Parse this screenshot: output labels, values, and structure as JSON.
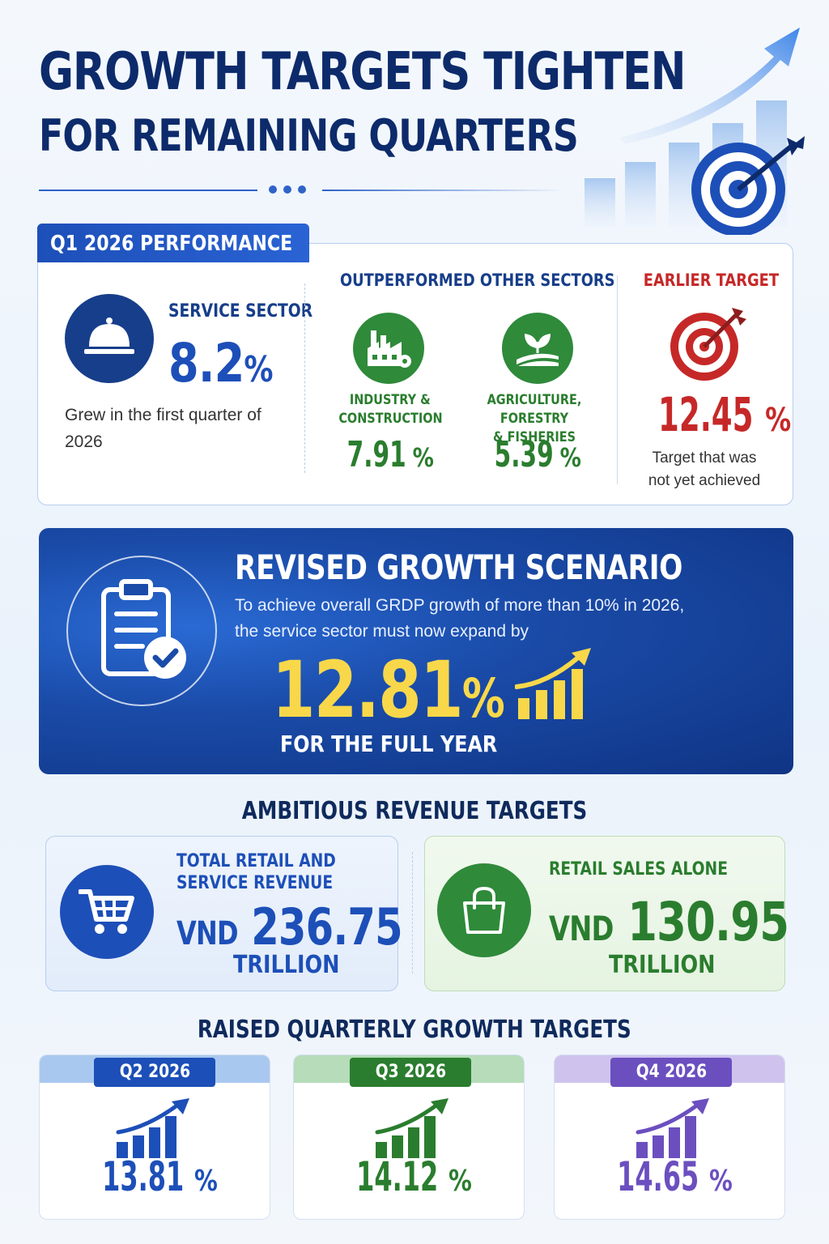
{
  "header": {
    "title_line1": "GROWTH TARGETS TIGHTEN",
    "title_line2": "FOR REMAINING QUARTERS"
  },
  "q1": {
    "tab_label": "Q1 2026 PERFORMANCE",
    "service": {
      "label": "SERVICE SECTOR",
      "value": "8.2",
      "unit": "%",
      "description": "Grew in the first quarter of 2026",
      "icon": "service-bell-icon"
    },
    "outperformed_label": "OUTPERFORMED OTHER SECTORS",
    "sectors": [
      {
        "name_line1": "INDUSTRY &",
        "name_line2": "CONSTRUCTION",
        "value": "7.91",
        "unit": "%",
        "icon": "factory-icon"
      },
      {
        "name_line1": "AGRICULTURE, FORESTRY",
        "name_line2": "& FISHERIES",
        "value": "5.39",
        "unit": "%",
        "icon": "plant-field-icon"
      }
    ],
    "earlier_target": {
      "label": "EARLIER TARGET",
      "value": "12.45",
      "unit": "%",
      "description": "Target that was not yet achieved",
      "icon": "target-arrow-icon"
    }
  },
  "revised": {
    "title": "REVISED GROWTH SCENARIO",
    "description": "To achieve overall GRDP growth of more than 10% in 2026, the service sector must now expand by",
    "value": "12.81",
    "unit": "%",
    "subtitle": "FOR THE FULL YEAR",
    "icon": "clipboard-check-icon"
  },
  "revenue": {
    "title": "AMBITIOUS REVENUE TARGETS",
    "total": {
      "label_line1": "TOTAL RETAIL AND",
      "label_line2": "SERVICE REVENUE",
      "currency": "VND",
      "value": "236.75",
      "unit": "TRILLION",
      "icon": "shopping-cart-icon"
    },
    "retail": {
      "label": "RETAIL SALES ALONE",
      "currency": "VND",
      "value": "130.95",
      "unit": "TRILLION",
      "icon": "shopping-bag-icon"
    }
  },
  "quarterly": {
    "title": "RAISED QUARTERLY GROWTH TARGETS",
    "items": [
      {
        "label": "Q2 2026",
        "value": "13.81",
        "unit": "%",
        "color": "#1d4fb8",
        "band": "#a9c8ef"
      },
      {
        "label": "Q3 2026",
        "value": "14.12",
        "unit": "%",
        "color": "#2a7d2e",
        "band": "#b6dcb9"
      },
      {
        "label": "Q4 2026",
        "value": "14.65",
        "unit": "%",
        "color": "#6b4fbf",
        "band": "#cfc3ee"
      }
    ]
  },
  "colors": {
    "navy": "#0d2b6b",
    "blue": "#1d4fb8",
    "green": "#2a7d2e",
    "red": "#c62828",
    "gold": "#f8d84a",
    "purple": "#6b4fbf"
  }
}
